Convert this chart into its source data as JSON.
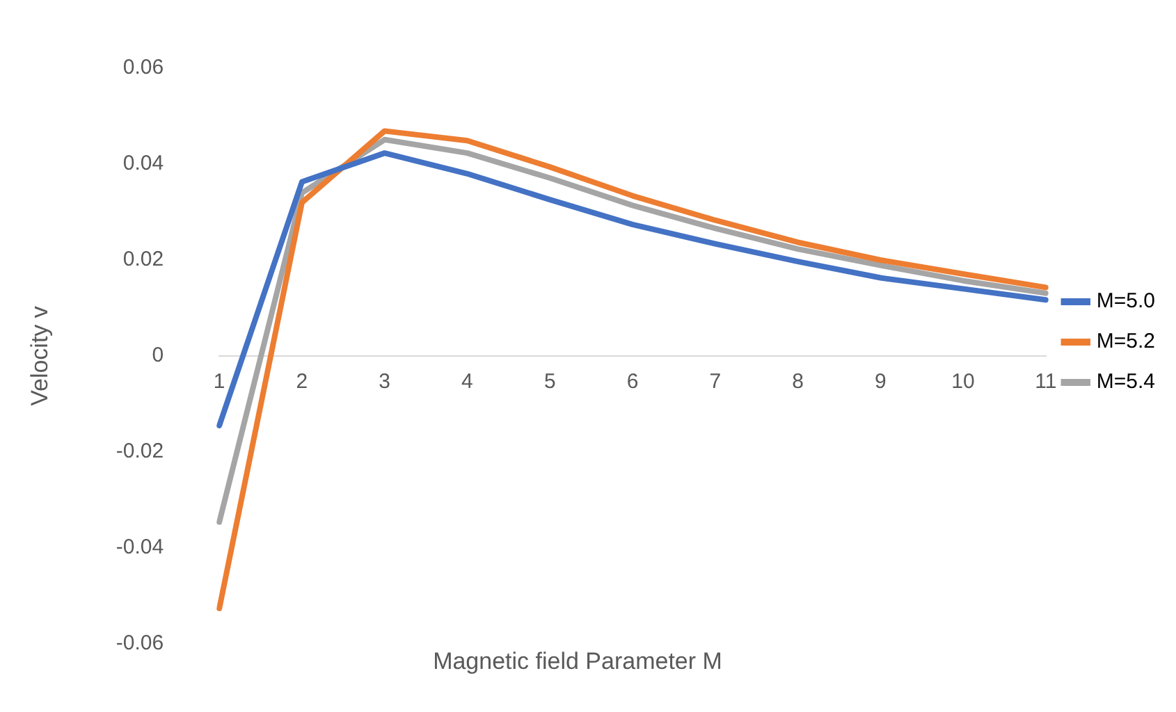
{
  "chart_data": {
    "type": "line",
    "xlabel": "Magnetic field Parameter M",
    "ylabel": "Velocity v",
    "categories": [
      "1",
      "2",
      "3",
      "4",
      "5",
      "6",
      "7",
      "8",
      "9",
      "10",
      "11"
    ],
    "series": [
      {
        "name": "M=5.0",
        "color": "#4472c4",
        "values": [
          -0.0145,
          0.0363,
          0.0423,
          0.038,
          0.0326,
          0.0274,
          0.0234,
          0.0197,
          0.0163,
          0.014,
          0.0117
        ]
      },
      {
        "name": "M=5.2",
        "color": "#ed7d31",
        "values": [
          -0.0526,
          0.032,
          0.0469,
          0.0449,
          0.0394,
          0.0334,
          0.0283,
          0.0237,
          0.02,
          0.0171,
          0.0143
        ]
      },
      {
        "name": "M=5.4",
        "color": "#a5a5a5",
        "values": [
          -0.0346,
          0.034,
          0.0451,
          0.0423,
          0.0371,
          0.0314,
          0.0266,
          0.0223,
          0.0189,
          0.0157,
          0.0131
        ]
      }
    ],
    "ylim": [
      -0.06,
      0.06
    ],
    "yticks": [
      -0.06,
      -0.04,
      -0.02,
      0,
      0.02,
      0.04,
      0.06
    ],
    "grid": false,
    "legend": "right",
    "marker": "none",
    "line_style": "solid"
  }
}
